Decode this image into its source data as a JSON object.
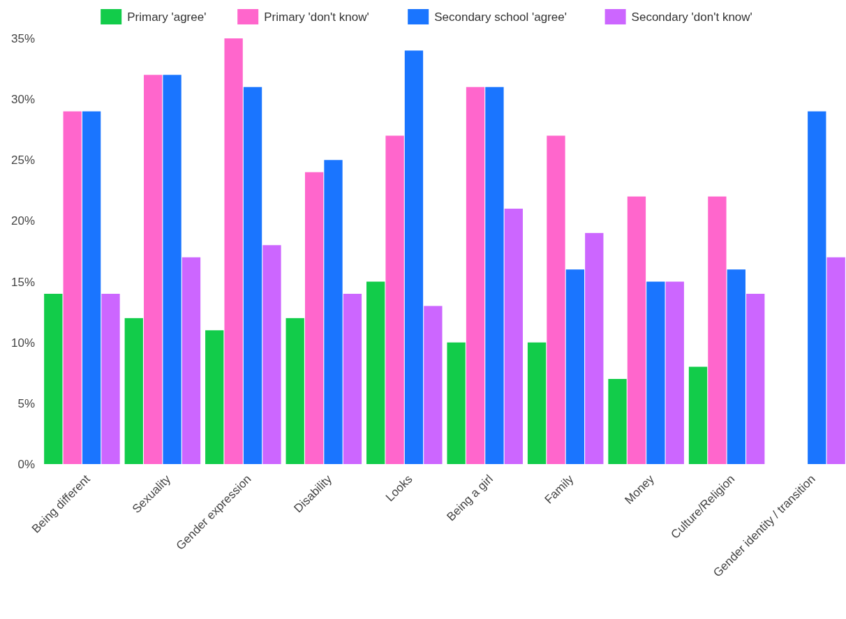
{
  "chart_data": {
    "type": "bar",
    "categories": [
      "Being different",
      "Sexuality",
      "Gender expression",
      "Disability",
      "Looks",
      "Being a girl",
      "Family",
      "Money",
      "Culture/Religion",
      "Gender identity / transition"
    ],
    "series": [
      {
        "name": "Primary 'agree'",
        "color": "#12cc4a",
        "values": [
          14,
          12,
          11,
          12,
          15,
          10,
          10,
          7,
          8,
          null
        ]
      },
      {
        "name": "Primary 'don't know'",
        "color": "#ff66cc",
        "values": [
          29,
          32,
          35,
          24,
          27,
          31,
          27,
          22,
          22,
          null
        ]
      },
      {
        "name": "Secondary school 'agree'",
        "color": "#1a75ff",
        "values": [
          29,
          32,
          31,
          25,
          34,
          31,
          16,
          15,
          16,
          29
        ]
      },
      {
        "name": "Secondary 'don't know'",
        "color": "#cc66ff",
        "values": [
          14,
          17,
          18,
          14,
          13,
          21,
          19,
          15,
          14,
          17
        ]
      }
    ],
    "ylim": [
      0,
      35
    ],
    "yticks": [
      {
        "value": 0,
        "label": "0%"
      },
      {
        "value": 5,
        "label": "5%"
      },
      {
        "value": 10,
        "label": "10%"
      },
      {
        "value": 15,
        "label": "15%"
      },
      {
        "value": 20,
        "label": "20%"
      },
      {
        "value": 25,
        "label": "25%"
      },
      {
        "value": 30,
        "label": "30%"
      },
      {
        "value": 35,
        "label": "35%"
      }
    ],
    "grid": false,
    "legend": "top"
  }
}
